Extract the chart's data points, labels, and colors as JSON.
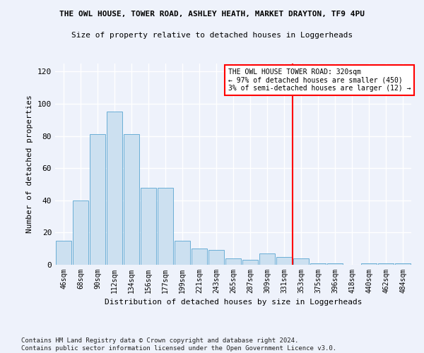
{
  "title_line1": "THE OWL HOUSE, TOWER ROAD, ASHLEY HEATH, MARKET DRAYTON, TF9 4PU",
  "title_line2": "Size of property relative to detached houses in Loggerheads",
  "xlabel": "Distribution of detached houses by size in Loggerheads",
  "ylabel": "Number of detached properties",
  "footnote": "Contains HM Land Registry data © Crown copyright and database right 2024.\nContains public sector information licensed under the Open Government Licence v3.0.",
  "bar_labels": [
    "46sqm",
    "68sqm",
    "90sqm",
    "112sqm",
    "134sqm",
    "156sqm",
    "177sqm",
    "199sqm",
    "221sqm",
    "243sqm",
    "265sqm",
    "287sqm",
    "309sqm",
    "331sqm",
    "353sqm",
    "375sqm",
    "396sqm",
    "418sqm",
    "440sqm",
    "462sqm",
    "484sqm"
  ],
  "bar_values": [
    15,
    40,
    81,
    95,
    81,
    48,
    48,
    15,
    10,
    9,
    4,
    3,
    7,
    5,
    4,
    1,
    1,
    0,
    1,
    1,
    1
  ],
  "bar_color": "#cce0f0",
  "bar_edgecolor": "#6aaed6",
  "vline_x": 13.5,
  "vline_color": "red",
  "annotation_title": "THE OWL HOUSE TOWER ROAD: 320sqm",
  "annotation_line1": "← 97% of detached houses are smaller (450)",
  "annotation_line2": "3% of semi-detached houses are larger (12) →",
  "ylim": [
    0,
    125
  ],
  "yticks": [
    0,
    20,
    40,
    60,
    80,
    100,
    120
  ],
  "background_color": "#eef2fb",
  "grid_color": "#ffffff"
}
